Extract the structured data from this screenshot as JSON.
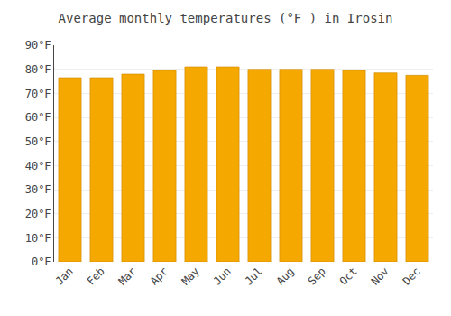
{
  "chart_data": {
    "type": "bar",
    "title": "Average monthly temperatures (°F ) in Irosin",
    "categories": [
      "Jan",
      "Feb",
      "Mar",
      "Apr",
      "May",
      "Jun",
      "Jul",
      "Aug",
      "Sep",
      "Oct",
      "Nov",
      "Dec"
    ],
    "values": [
      76.5,
      76.5,
      78.0,
      79.5,
      81.0,
      81.0,
      80.0,
      80.0,
      80.0,
      79.5,
      78.5,
      77.5
    ],
    "color": "#F5A800",
    "ylim": [
      0,
      90
    ],
    "yticks": [
      {
        "value": 0,
        "label": "0°F"
      },
      {
        "value": 10,
        "label": "10°F"
      },
      {
        "value": 20,
        "label": "20°F"
      },
      {
        "value": 30,
        "label": "30°F"
      },
      {
        "value": 40,
        "label": "40°F"
      },
      {
        "value": 50,
        "label": "50°F"
      },
      {
        "value": 60,
        "label": "60°F"
      },
      {
        "value": 70,
        "label": "70°F"
      },
      {
        "value": 80,
        "label": "80°F"
      },
      {
        "value": 90,
        "label": "90°F"
      }
    ],
    "grid": true
  }
}
